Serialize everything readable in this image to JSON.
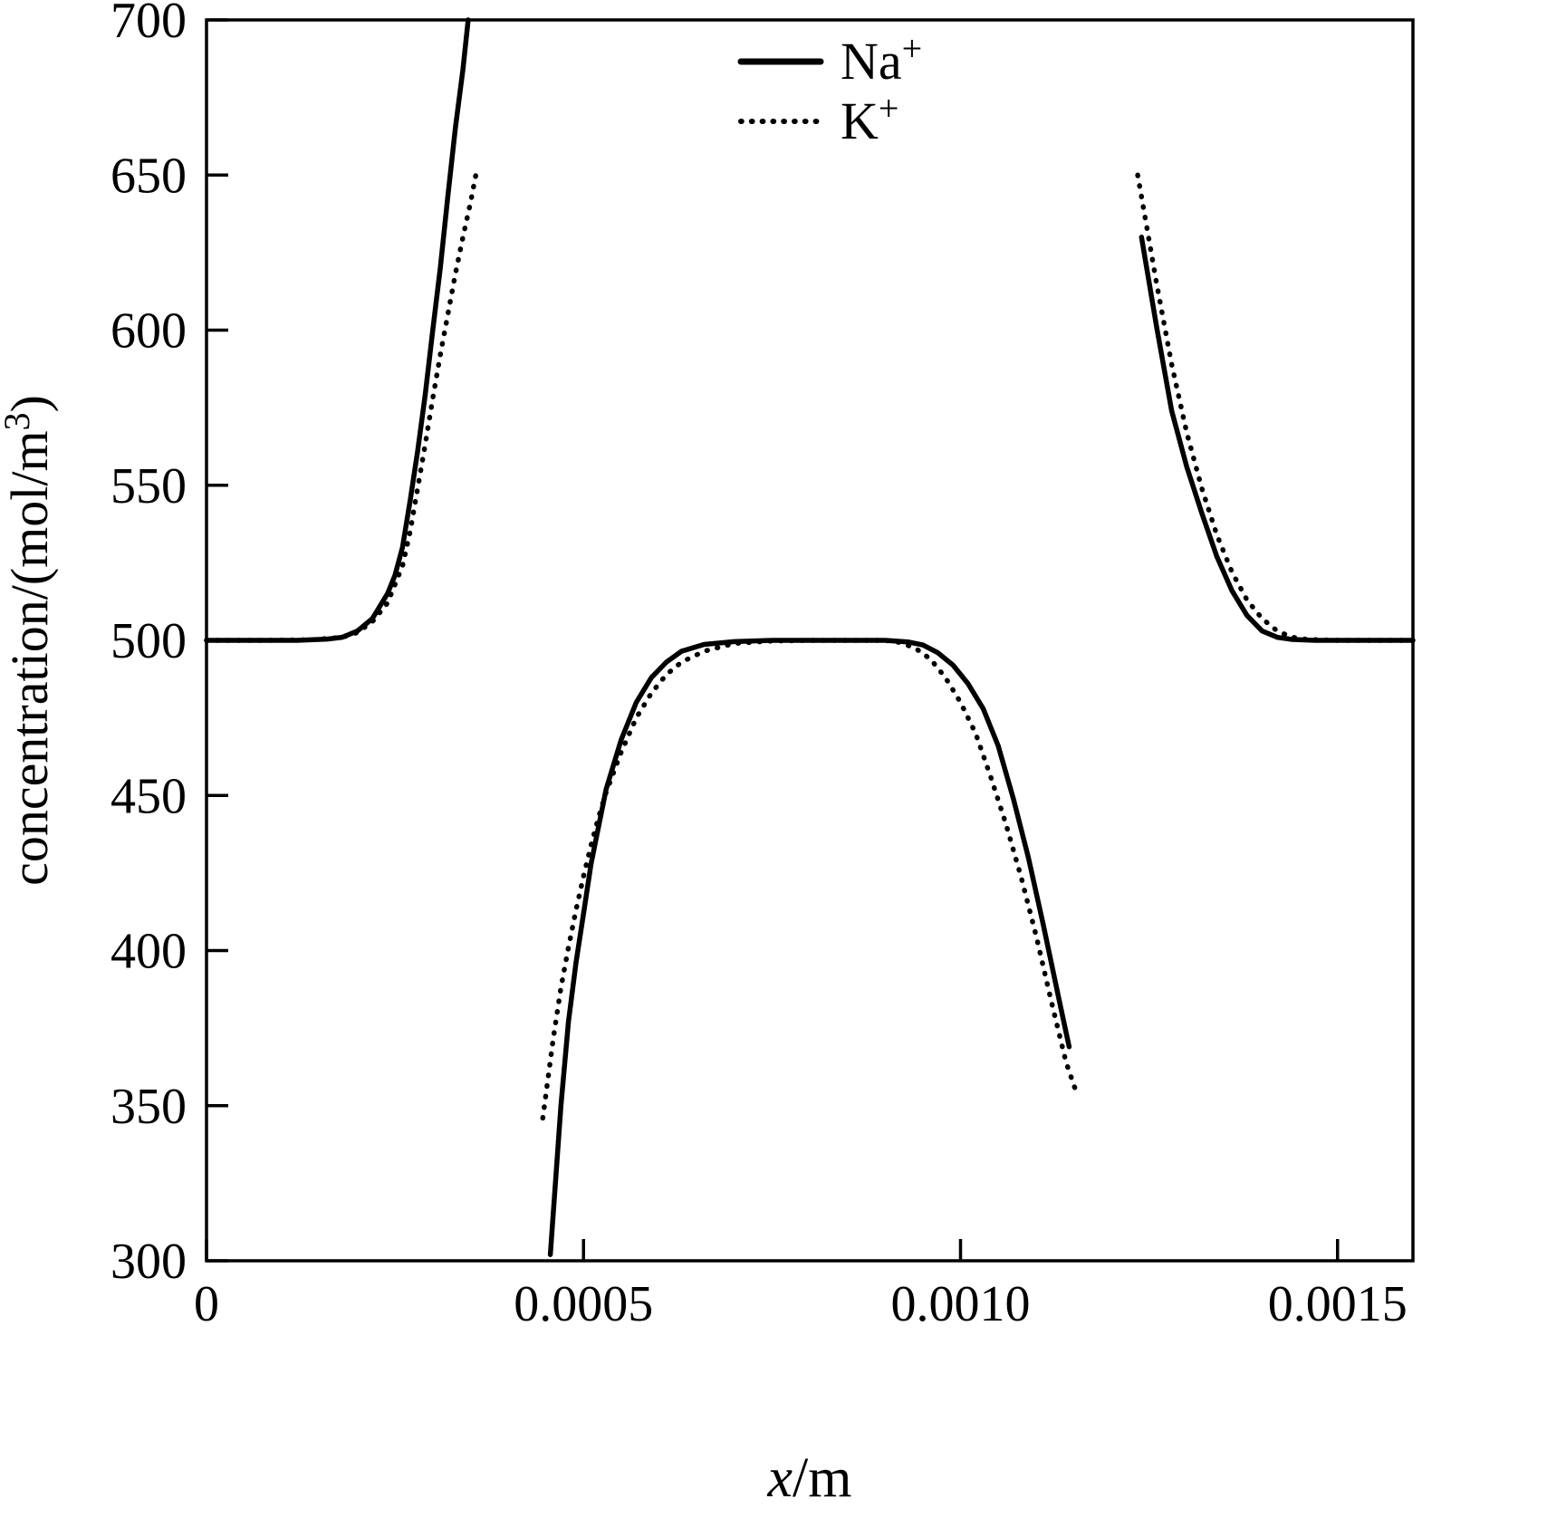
{
  "chart_data": {
    "type": "line",
    "title": "",
    "xlabel_parts": {
      "italic": "x",
      "rest": "/m"
    },
    "ylabel_parts": {
      "pre": "concentration/(mol/m",
      "sup": "3",
      "post": ")"
    },
    "xlim": [
      0,
      0.0016
    ],
    "ylim": [
      300,
      700
    ],
    "grid": false,
    "xticks": [
      0,
      0.0005,
      0.001,
      0.0015
    ],
    "xtick_labels": [
      "0",
      "0.0005",
      "0.0010",
      "0.0015"
    ],
    "yticks": [
      300,
      350,
      400,
      450,
      500,
      550,
      600,
      650,
      700
    ],
    "ytick_labels": [
      "300",
      "350",
      "400",
      "450",
      "500",
      "550",
      "600",
      "650",
      "700"
    ],
    "legend": {
      "position": "top-center",
      "entries": [
        "Na+",
        "K+"
      ]
    },
    "line_color": "#000000",
    "series": [
      {
        "name": "Na+",
        "base": "Na",
        "sup": "+",
        "style": "solid",
        "color": "#000000",
        "segments": [
          [
            [
              0,
              500
            ],
            [
              6e-05,
              500
            ],
            [
              0.00012,
              500
            ],
            [
              0.00016,
              500.4
            ],
            [
              0.00018,
              501
            ],
            [
              0.0002,
              503
            ],
            [
              0.00022,
              507
            ],
            [
              0.00024,
              515
            ],
            [
              0.00025,
              521
            ],
            [
              0.00026,
              530
            ],
            [
              0.00027,
              545
            ],
            [
              0.00028,
              561
            ],
            [
              0.00029,
              579
            ],
            [
              0.0003,
              600
            ],
            [
              0.00031,
              620
            ],
            [
              0.00032,
              643
            ],
            [
              0.00033,
              665
            ],
            [
              0.00034,
              684
            ],
            [
              0.000347,
              700
            ]
          ],
          [
            [
              0.000456,
              302
            ],
            [
              0.00047,
              350
            ],
            [
              0.00048,
              377
            ],
            [
              0.00049,
              396
            ],
            [
              0.0005,
              412
            ],
            [
              0.00051,
              428
            ],
            [
              0.00052,
              440
            ],
            [
              0.00053,
              452
            ],
            [
              0.00055,
              468
            ],
            [
              0.00057,
              480
            ],
            [
              0.00059,
              488
            ],
            [
              0.00061,
              493
            ],
            [
              0.00063,
              496.5
            ],
            [
              0.00066,
              498.7
            ],
            [
              0.0007,
              499.6
            ],
            [
              0.00075,
              500
            ],
            [
              0.0008,
              500
            ],
            [
              0.00085,
              500
            ],
            [
              0.0009,
              500
            ],
            [
              0.00093,
              499.5
            ],
            [
              0.00095,
              498.5
            ],
            [
              0.00097,
              496
            ],
            [
              0.00099,
              492
            ],
            [
              0.00101,
              486
            ],
            [
              0.00103,
              478
            ],
            [
              0.00105,
              466
            ],
            [
              0.00107,
              449
            ],
            [
              0.00109,
              430
            ],
            [
              0.00111,
              408
            ],
            [
              0.00113,
              385
            ],
            [
              0.001144,
              369
            ]
          ],
          [
            [
              0.00124,
              630
            ],
            [
              0.00126,
              601
            ],
            [
              0.00128,
              574
            ],
            [
              0.0013,
              556
            ],
            [
              0.00132,
              541
            ],
            [
              0.00134,
              527
            ],
            [
              0.00136,
              516
            ],
            [
              0.00138,
              508
            ],
            [
              0.0014,
              503
            ],
            [
              0.00142,
              501
            ],
            [
              0.00144,
              500.3
            ],
            [
              0.00147,
              500
            ],
            [
              0.00152,
              500
            ],
            [
              0.0016,
              500
            ]
          ]
        ]
      },
      {
        "name": "K+",
        "base": "K",
        "sup": "+",
        "style": "dotted",
        "color": "#000000",
        "segments": [
          [
            [
              0,
              500
            ],
            [
              8e-05,
              500
            ],
            [
              0.00014,
              500.2
            ],
            [
              0.00018,
              501
            ],
            [
              0.0002,
              502.5
            ],
            [
              0.00022,
              506
            ],
            [
              0.00024,
              512
            ],
            [
              0.00026,
              524
            ],
            [
              0.00027,
              535
            ],
            [
              0.00028,
              549
            ],
            [
              0.00029,
              563
            ],
            [
              0.0003,
              578
            ],
            [
              0.00031,
              592
            ],
            [
              0.00032,
              605
            ],
            [
              0.00033,
              618
            ],
            [
              0.00034,
              630
            ],
            [
              0.00035,
              641
            ],
            [
              0.000358,
              651
            ]
          ],
          [
            [
              0.000446,
              346
            ],
            [
              0.00046,
              372
            ],
            [
              0.00047,
              388
            ],
            [
              0.00048,
              401
            ],
            [
              0.00049,
              413
            ],
            [
              0.0005,
              424
            ],
            [
              0.00051,
              434
            ],
            [
              0.00052,
              443
            ],
            [
              0.00053,
              451
            ],
            [
              0.00055,
              464
            ],
            [
              0.00057,
              475
            ],
            [
              0.00059,
              483
            ],
            [
              0.00061,
              489
            ],
            [
              0.00063,
              493
            ],
            [
              0.00066,
              496.5
            ],
            [
              0.0007,
              499
            ],
            [
              0.00075,
              499.8
            ],
            [
              0.0008,
              500
            ],
            [
              0.00085,
              500
            ],
            [
              0.0009,
              500
            ],
            [
              0.00092,
              499.3
            ],
            [
              0.00094,
              497.5
            ],
            [
              0.00096,
              494
            ],
            [
              0.00098,
              488
            ],
            [
              0.001,
              480
            ],
            [
              0.00102,
              470
            ],
            [
              0.00104,
              456
            ],
            [
              0.00106,
              441
            ],
            [
              0.00108,
              424
            ],
            [
              0.0011,
              405
            ],
            [
              0.00112,
              384
            ],
            [
              0.00114,
              364
            ],
            [
              0.001154,
              354
            ]
          ],
          [
            [
              0.001235,
              650
            ],
            [
              0.00126,
              615
            ],
            [
              0.00128,
              589
            ],
            [
              0.0013,
              567
            ],
            [
              0.00132,
              549
            ],
            [
              0.00134,
              534
            ],
            [
              0.00136,
              522
            ],
            [
              0.00138,
              513
            ],
            [
              0.0014,
              507
            ],
            [
              0.00142,
              503
            ],
            [
              0.00144,
              501
            ],
            [
              0.00146,
              500.3
            ],
            [
              0.0015,
              500
            ],
            [
              0.00155,
              500
            ],
            [
              0.0016,
              500
            ]
          ]
        ]
      }
    ]
  }
}
